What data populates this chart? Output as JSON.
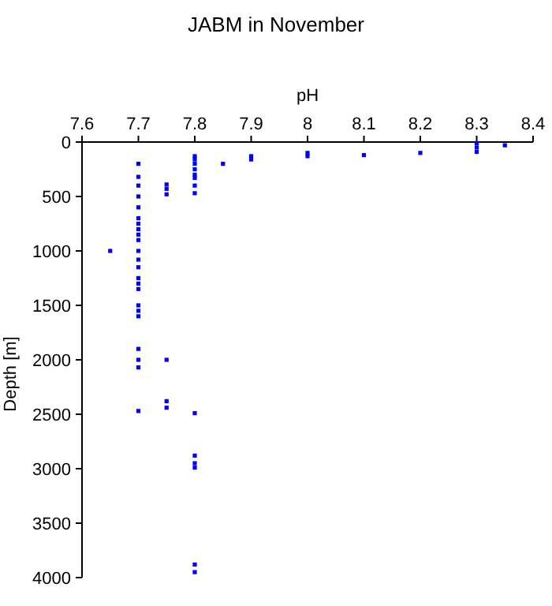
{
  "chart_data": {
    "type": "scatter",
    "title": "JABM in November",
    "xlabel": "pH",
    "ylabel": "Depth [m]",
    "marker": "square",
    "grid": false,
    "xlim": [
      7.6,
      8.4
    ],
    "xticks": [
      7.6,
      7.7,
      7.8,
      7.9,
      8,
      8.1,
      8.2,
      8.3,
      8.4
    ],
    "ylim": [
      4000,
      0
    ],
    "yticks": [
      0,
      500,
      1000,
      1500,
      2000,
      2500,
      3000,
      3500,
      4000
    ],
    "series": [
      {
        "color": "#0000ff",
        "x": [
          7.65,
          7.7,
          7.7,
          7.7,
          7.7,
          7.7,
          7.7,
          7.7,
          7.7,
          7.7,
          7.7,
          7.7,
          7.7,
          7.7,
          7.7,
          7.7,
          7.7,
          7.7,
          7.7,
          7.7,
          7.7,
          7.7,
          7.7,
          7.7,
          7.75,
          7.75,
          7.75,
          7.75,
          7.75,
          7.75,
          7.8,
          7.8,
          7.8,
          7.8,
          7.8,
          7.8,
          7.8,
          7.8,
          7.8,
          7.8,
          7.8,
          7.8,
          7.8,
          7.8,
          7.85,
          7.9,
          7.9,
          8,
          8,
          8.1,
          8.2,
          8.3,
          8.3,
          8.3,
          8.35
        ],
        "values": [
          1000,
          200,
          320,
          400,
          500,
          600,
          700,
          750,
          800,
          850,
          900,
          1000,
          1080,
          1150,
          1250,
          1300,
          1350,
          1500,
          1550,
          1600,
          1900,
          2000,
          2070,
          2470,
          390,
          430,
          480,
          2000,
          2380,
          2440,
          130,
          160,
          200,
          250,
          300,
          330,
          400,
          470,
          2490,
          2880,
          2950,
          2990,
          3880,
          3950,
          200,
          130,
          160,
          100,
          130,
          120,
          100,
          10,
          50,
          90,
          30
        ]
      }
    ]
  }
}
